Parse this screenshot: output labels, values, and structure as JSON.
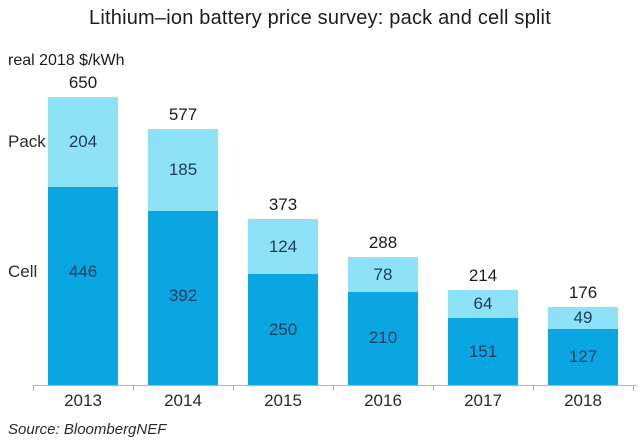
{
  "title": "Lithium–ion battery price survey: pack and cell split",
  "ylabel": "real 2018 $/kWh",
  "source": "Source: BloombergNEF",
  "side_labels": {
    "pack": "Pack",
    "cell": "Cell"
  },
  "colors": {
    "pack_fill": "#8de2f8",
    "cell_fill": "#09a6e1",
    "value_text": "#1d3b5e",
    "label_text": "#2b2b2b",
    "title_text": "#1c1c1c",
    "axis": "#b5b5b5"
  },
  "chart_data": {
    "type": "bar",
    "stacked": true,
    "categories": [
      "2013",
      "2014",
      "2015",
      "2016",
      "2017",
      "2018"
    ],
    "series": [
      {
        "name": "Cell",
        "values": [
          446,
          392,
          250,
          210,
          151,
          127
        ]
      },
      {
        "name": "Pack",
        "values": [
          204,
          185,
          124,
          78,
          64,
          49
        ]
      }
    ],
    "totals": [
      650,
      577,
      373,
      288,
      214,
      176
    ],
    "title": "Lithium–ion battery price survey: pack and cell split",
    "xlabel": "",
    "ylabel": "real 2018 $/kWh",
    "ylim": [
      0,
      650
    ],
    "grid": false,
    "legend_position": "left-side-segment-labels"
  }
}
